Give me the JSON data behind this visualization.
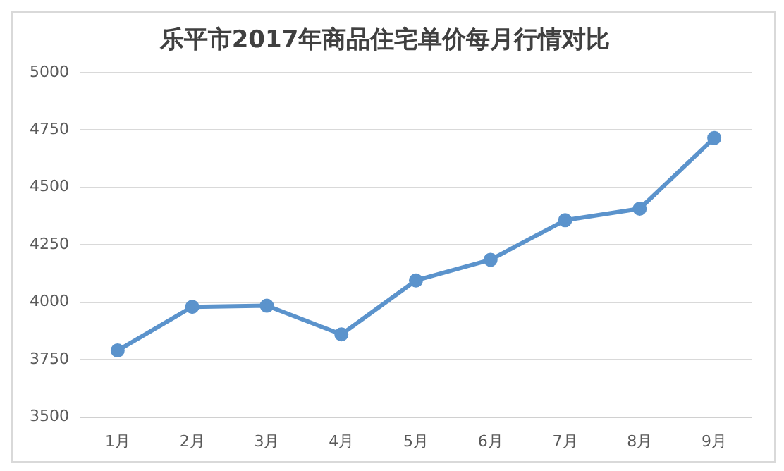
{
  "chart_data": {
    "type": "line",
    "title": "乐平市2017年商品住宅单价每月行情对比",
    "categories": [
      "1月",
      "2月",
      "3月",
      "4月",
      "5月",
      "6月",
      "7月",
      "8月",
      "9月"
    ],
    "series": [
      {
        "color": "#5b93cc",
        "values": [
          3790,
          3980,
          3985,
          3860,
          4095,
          4185,
          4357,
          4407,
          4715
        ]
      }
    ],
    "ylim": [
      3500,
      5000
    ],
    "yticks": [
      3500,
      3750,
      4000,
      4250,
      4500,
      4750,
      5000
    ],
    "grid": "y",
    "legend": false,
    "marker": "circle",
    "line_style": "solid"
  }
}
